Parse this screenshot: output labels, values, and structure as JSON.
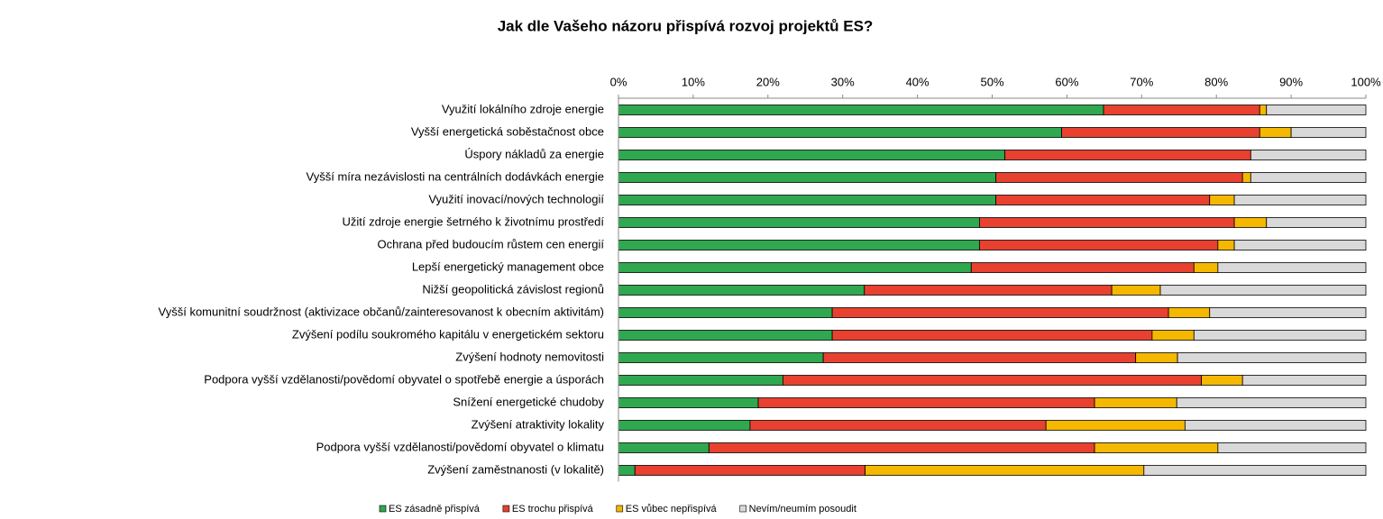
{
  "chart_data": {
    "type": "stacked-bar-horizontal",
    "title": "Jak dle Vašeho názoru přispívá rozvoj projektů ES?",
    "categories": [
      "Využití lokálního zdroje energie",
      "Vyšší energetická soběstačnost obce",
      "Úspory nákladů za energie",
      "Vyšší míra nezávislosti na centrálních dodávkách energie",
      "Využití inovací/nových technologií",
      "Užití zdroje energie šetrného k životnímu prostředí",
      "Ochrana před budoucím růstem cen energií",
      "Lepší energetický management obce",
      "Nižší geopolitická závislost regionů",
      "Vyšší komunitní soudržnost (aktivizace občanů/zainteresovanost k obecním aktivitám)",
      "Zvýšení podílu soukromého kapitálu v energetickém sektoru",
      "Zvýšení hodnoty nemovitosti",
      "Podpora vyšší vzdělanosti/povědomí obyvatel o spotřebě energie a úsporách",
      "Snížení energetické chudoby",
      "Zvýšení atraktivity lokality",
      "Podpora vyšší vzdělanosti/povědomí obyvatel o klimatu",
      "Zvýšení zaměstnanosti (v lokalitě)"
    ],
    "series": [
      {
        "name": "ES zásadně přispívá",
        "color": "#2fa84f",
        "values": [
          64.9,
          59.3,
          51.7,
          50.5,
          50.5,
          48.3,
          48.3,
          47.2,
          32.9,
          28.6,
          28.6,
          27.4,
          22.0,
          18.7,
          17.6,
          12.1,
          2.2
        ]
      },
      {
        "name": "ES trochu přispívá",
        "color": "#e8412f",
        "values": [
          20.9,
          26.5,
          32.9,
          33.0,
          28.6,
          34.1,
          31.9,
          29.8,
          33.1,
          45.0,
          42.8,
          41.8,
          56.0,
          45.0,
          39.6,
          51.6,
          30.8
        ]
      },
      {
        "name": "ES vůbec nepřispívá",
        "color": "#f5b800",
        "values": [
          0.9,
          4.2,
          0,
          1.1,
          3.3,
          4.3,
          2.2,
          3.2,
          6.5,
          5.5,
          5.6,
          5.6,
          5.5,
          11.0,
          18.6,
          16.5,
          37.3
        ]
      },
      {
        "name": "Nevím/neumím posoudit",
        "color": "#d9d9d9",
        "values": [
          13.3,
          10.0,
          15.4,
          15.4,
          17.6,
          13.3,
          17.6,
          19.8,
          27.5,
          20.9,
          23.0,
          25.2,
          16.5,
          25.3,
          24.2,
          19.8,
          29.7
        ]
      }
    ],
    "xlim": [
      0,
      100
    ],
    "xticks": [
      {
        "value": 0,
        "label": "0%"
      },
      {
        "value": 10,
        "label": "10%"
      },
      {
        "value": 20,
        "label": "20%"
      },
      {
        "value": 30,
        "label": "30%"
      },
      {
        "value": 40,
        "label": "40%"
      },
      {
        "value": 50,
        "label": "50%"
      },
      {
        "value": 60,
        "label": "60%"
      },
      {
        "value": 70,
        "label": "70%"
      },
      {
        "value": 80,
        "label": "80%"
      },
      {
        "value": 90,
        "label": "90%"
      },
      {
        "value": 100,
        "label": "100%"
      }
    ],
    "legend": "bottom"
  }
}
